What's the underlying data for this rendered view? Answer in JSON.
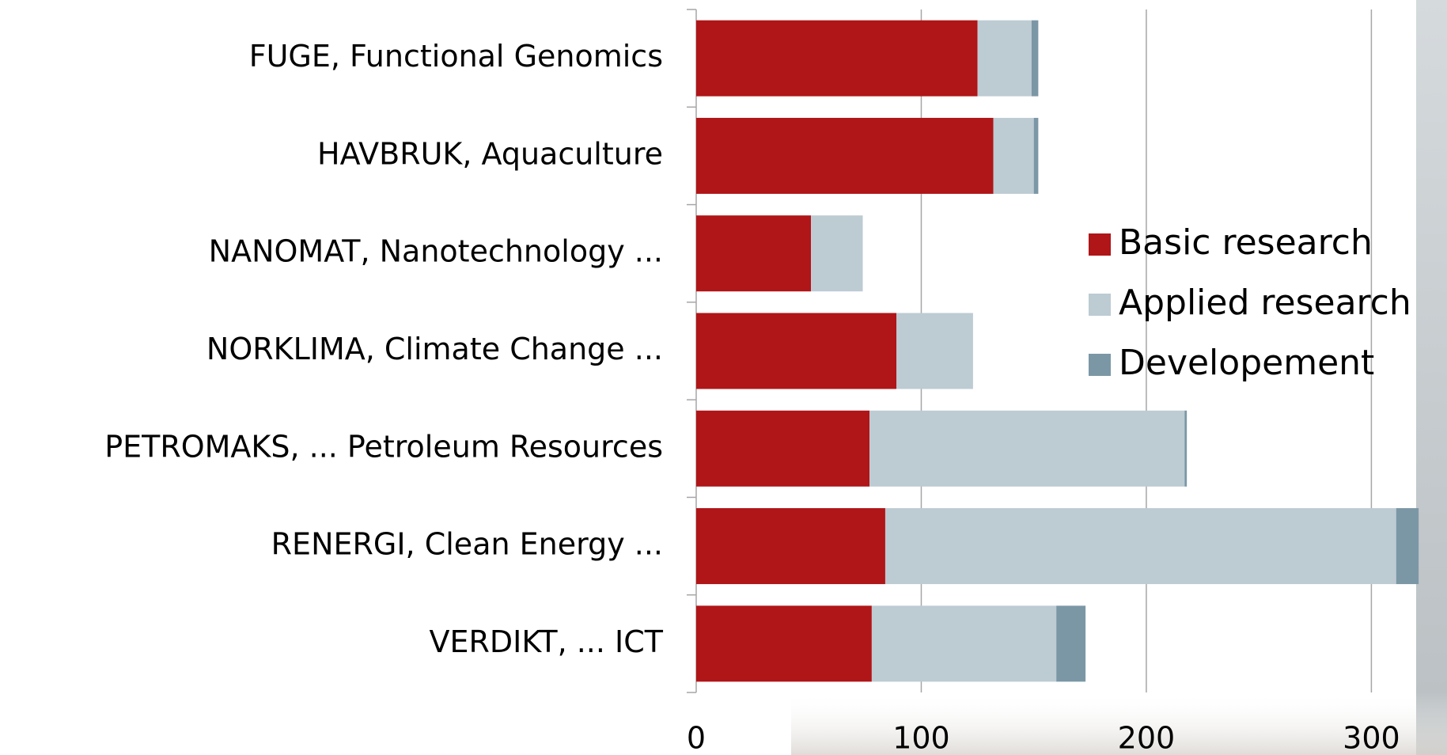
{
  "chart_data": {
    "type": "stacked_bar_horizontal",
    "categories": [
      "FUGE, Functional Genomics",
      "HAVBRUK, Aquaculture",
      "NANOMAT, Nanotechnology ...",
      "NORKLIMA, Climate Change ...",
      "PETROMAKS, ... Petroleum Resources",
      "RENERGI, Clean Energy ...",
      "VERDIKT, ... ICT"
    ],
    "series": [
      {
        "name": "Basic research",
        "color": "#b01518",
        "values": [
          125,
          132,
          51,
          89,
          77,
          84,
          78
        ]
      },
      {
        "name": "Applied research",
        "color": "#bdcbd3",
        "values": [
          24,
          18,
          23,
          34,
          140,
          227,
          82
        ]
      },
      {
        "name": "Developement",
        "color": "#7b97a6",
        "values": [
          3,
          2,
          0,
          0,
          1,
          10,
          13
        ]
      }
    ],
    "xlim": [
      0,
      322
    ],
    "xticks": [
      0,
      100,
      200,
      300
    ],
    "grid": true,
    "legend": "right"
  }
}
